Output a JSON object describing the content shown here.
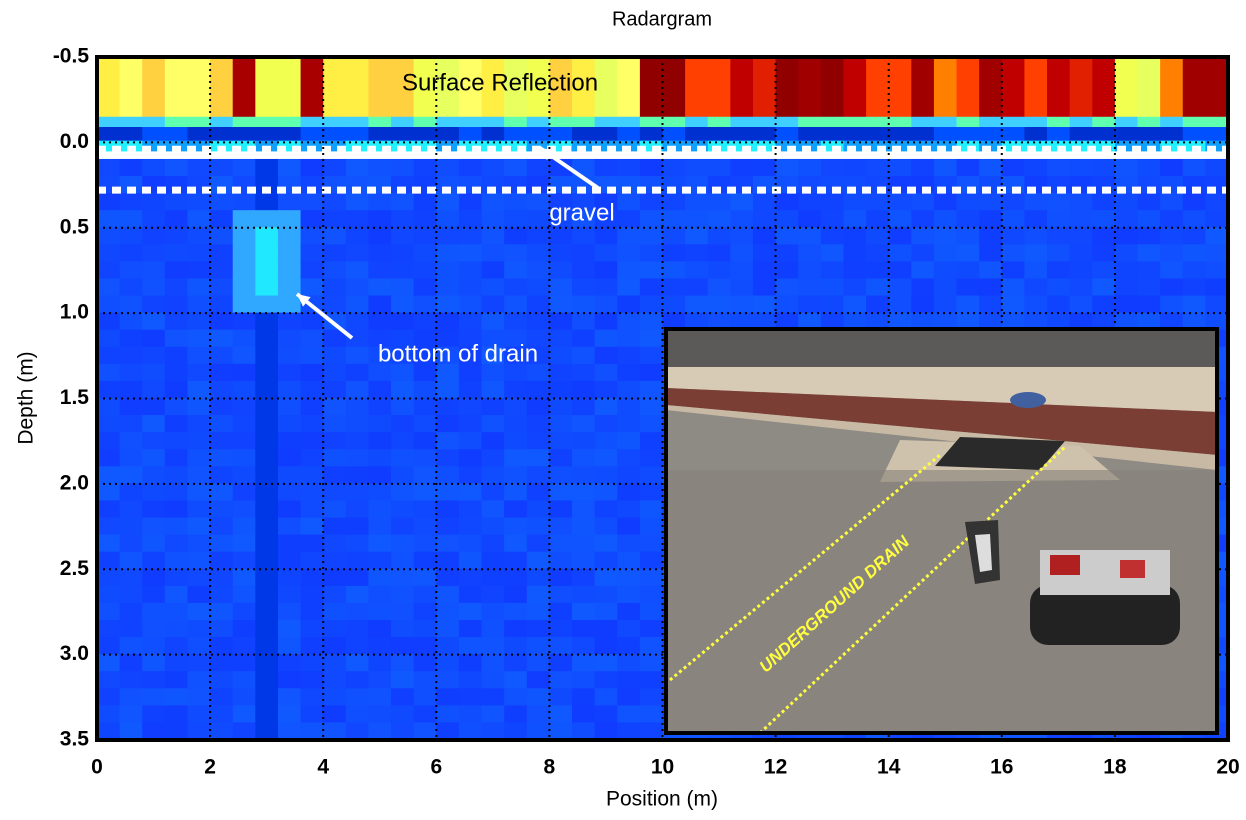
{
  "chart_data": {
    "type": "heatmap",
    "title": "Radargram",
    "x_label": "Position (m)",
    "y_label": "Depth (m)",
    "xlim": [
      0,
      20
    ],
    "xticks": [
      0,
      2,
      4,
      6,
      8,
      10,
      12,
      14,
      16,
      18,
      20
    ],
    "ylim": [
      -0.5,
      3.5
    ],
    "yticks": [
      -0.5,
      {
        "value": 0,
        "label": "0.0"
      },
      0.5,
      {
        "value": 1,
        "label": "1.0"
      },
      1.5,
      {
        "value": 2,
        "label": "2.0"
      },
      2.5,
      {
        "value": 3,
        "label": "3.0"
      },
      3.5
    ],
    "y_inverted": true,
    "grid": true,
    "annotations": [
      "Surface Reflection",
      "gravel",
      "bottom of drain"
    ],
    "inset_label": "UNDERGROUND DRAIN"
  }
}
